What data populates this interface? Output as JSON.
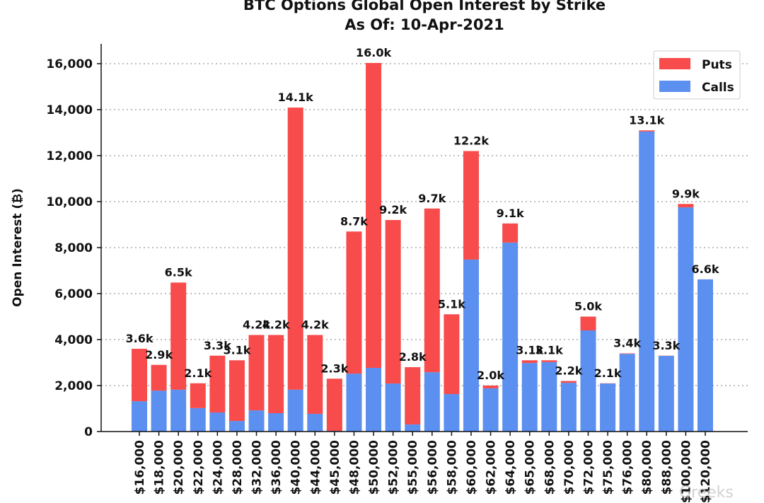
{
  "chart_data": {
    "type": "bar",
    "stacked": true,
    "title": "BTC Options Global Open Interest by Strike",
    "subtitle": "As Of: 10-Apr-2021",
    "xlabel": "",
    "ylabel": "Open Interest (₿)",
    "ylim": [
      0,
      16800
    ],
    "yticks": [
      0,
      2000,
      4000,
      6000,
      8000,
      10000,
      12000,
      14000,
      16000
    ],
    "ytick_labels": [
      "0",
      "2,000",
      "4,000",
      "6,000",
      "8,000",
      "10,000",
      "12,000",
      "14,000",
      "16,000"
    ],
    "grid": "horizontal dotted",
    "legend_position": "top-right",
    "categories": [
      "$16,000",
      "$18,000",
      "$20,000",
      "$22,000",
      "$24,000",
      "$28,000",
      "$32,000",
      "$36,000",
      "$40,000",
      "$44,000",
      "$45,000",
      "$48,000",
      "$50,000",
      "$52,000",
      "$55,000",
      "$56,000",
      "$58,000",
      "$60,000",
      "$62,000",
      "$64,000",
      "$65,000",
      "$68,000",
      "$70,000",
      "$72,000",
      "$75,000",
      "$76,000",
      "$80,000",
      "$88,000",
      "$100,000",
      "$120,000"
    ],
    "series": [
      {
        "name": "Calls",
        "color": "#5b8ff0",
        "values": [
          1320,
          1780,
          1820,
          1020,
          830,
          460,
          920,
          800,
          1820,
          770,
          30,
          2520,
          2770,
          2090,
          310,
          2580,
          1630,
          7480,
          1880,
          8220,
          2980,
          3020,
          2120,
          4400,
          2090,
          3380,
          13050,
          3290,
          9750,
          6620
        ]
      },
      {
        "name": "Puts",
        "color": "#f84b4b",
        "values": [
          2280,
          1120,
          4660,
          1080,
          2470,
          2640,
          3280,
          3400,
          12270,
          3430,
          2270,
          6180,
          13260,
          7110,
          2490,
          7120,
          3470,
          4720,
          120,
          830,
          120,
          80,
          80,
          600,
          10,
          20,
          50,
          10,
          150,
          0
        ]
      }
    ],
    "data_labels": [
      "3.6k",
      "2.9k",
      "6.5k",
      "2.1k",
      "3.3k",
      "3.1k",
      "4.2k",
      "4.2k",
      "14.1k",
      "4.2k",
      "2.3k",
      "8.7k",
      "16.0k",
      "9.2k",
      "2.8k",
      "9.7k",
      "5.1k",
      "12.2k",
      "2.0k",
      "9.1k",
      "3.1k",
      "3.1k",
      "2.2k",
      "5.0k",
      "2.1k",
      "3.4k",
      "13.1k",
      "3.3k",
      "9.9k",
      "6.6k"
    ],
    "legend": [
      "Puts",
      "Calls"
    ],
    "watermark": "Greeks"
  }
}
